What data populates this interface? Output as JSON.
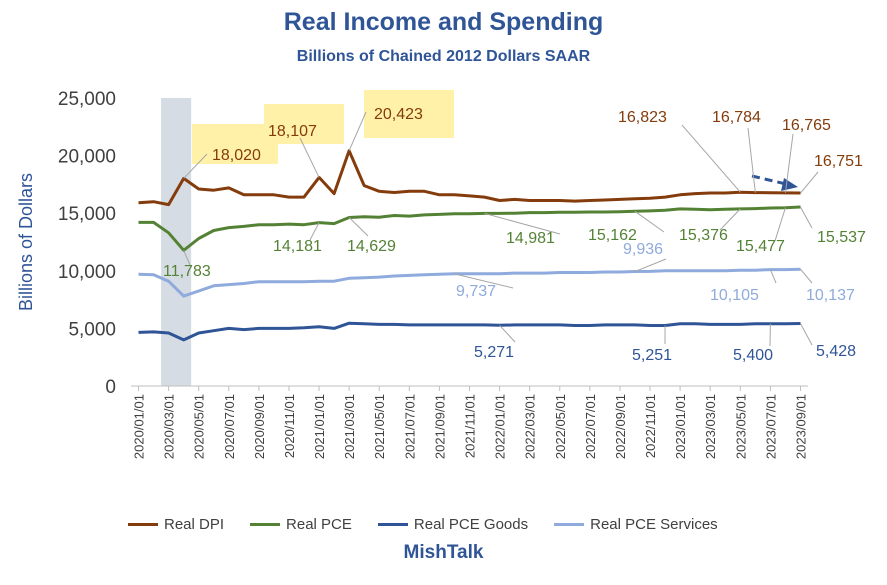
{
  "title": "Real Income and Spending",
  "subtitle": "Billions of Chained 2012 Dollars SAAR",
  "brand": "MishTalk",
  "chart_data": {
    "type": "line",
    "ylabel": "Billions of Dollars",
    "ylim": [
      0,
      25000
    ],
    "yticks": [
      "0",
      "5,000",
      "10,000",
      "15,000",
      "20,000",
      "25,000"
    ],
    "x": [
      "2020/01/01",
      "2020/02/01",
      "2020/03/01",
      "2020/04/01",
      "2020/05/01",
      "2020/06/01",
      "2020/07/01",
      "2020/08/01",
      "2020/09/01",
      "2020/10/01",
      "2020/11/01",
      "2020/12/01",
      "2021/01/01",
      "2021/02/01",
      "2021/03/01",
      "2021/04/01",
      "2021/05/01",
      "2021/06/01",
      "2021/07/01",
      "2021/08/01",
      "2021/09/01",
      "2021/10/01",
      "2021/11/01",
      "2021/12/01",
      "2022/01/01",
      "2022/02/01",
      "2022/03/01",
      "2022/04/01",
      "2022/05/01",
      "2022/06/01",
      "2022/07/01",
      "2022/08/01",
      "2022/09/01",
      "2022/10/01",
      "2022/11/01",
      "2022/12/01",
      "2023/01/01",
      "2023/02/01",
      "2023/03/01",
      "2023/04/01",
      "2023/05/01",
      "2023/06/01",
      "2023/07/01",
      "2023/08/01",
      "2023/09/01"
    ],
    "xtick_labels": [
      "2020/01/01",
      "2020/03/01",
      "2020/05/01",
      "2020/07/01",
      "2020/09/01",
      "2020/11/01",
      "2021/01/01",
      "2021/03/01",
      "2021/05/01",
      "2021/07/01",
      "2021/09/01",
      "2021/11/01",
      "2022/01/01",
      "2022/03/01",
      "2022/05/01",
      "2022/07/01",
      "2022/09/01",
      "2022/11/01",
      "2023/01/01",
      "2023/03/01",
      "2023/05/01",
      "2023/07/01",
      "2023/09/01"
    ],
    "recession_shade": [
      "2020/03/01",
      "2020/04/01"
    ],
    "series": [
      {
        "name": "Real DPI",
        "color": "#843c0c",
        "values": [
          15900,
          16000,
          15750,
          18020,
          17100,
          17000,
          17200,
          16600,
          16600,
          16600,
          16400,
          16400,
          18107,
          16700,
          20423,
          17400,
          16900,
          16800,
          16900,
          16900,
          16600,
          16600,
          16500,
          16400,
          16100,
          16200,
          16100,
          16100,
          16100,
          16050,
          16100,
          16150,
          16200,
          16250,
          16300,
          16400,
          16600,
          16700,
          16750,
          16750,
          16823,
          16784,
          16780,
          16765,
          16751
        ]
      },
      {
        "name": "Real PCE",
        "color": "#548235",
        "values": [
          14200,
          14200,
          13300,
          11783,
          12800,
          13500,
          13750,
          13850,
          14000,
          14000,
          14050,
          14000,
          14181,
          14100,
          14629,
          14700,
          14650,
          14800,
          14750,
          14850,
          14900,
          14950,
          14950,
          14981,
          14981,
          15000,
          15050,
          15050,
          15080,
          15080,
          15100,
          15100,
          15120,
          15162,
          15200,
          15250,
          15376,
          15350,
          15300,
          15350,
          15376,
          15400,
          15450,
          15477,
          15537
        ]
      },
      {
        "name": "Real PCE Goods",
        "color": "#2f5597",
        "values": [
          4650,
          4700,
          4600,
          4000,
          4600,
          4800,
          5000,
          4900,
          5000,
          5000,
          5000,
          5050,
          5150,
          5000,
          5450,
          5400,
          5350,
          5350,
          5300,
          5300,
          5300,
          5300,
          5300,
          5300,
          5271,
          5300,
          5300,
          5300,
          5300,
          5250,
          5250,
          5300,
          5300,
          5300,
          5250,
          5251,
          5400,
          5400,
          5350,
          5350,
          5350,
          5400,
          5400,
          5400,
          5428
        ]
      },
      {
        "name": "Real PCE Services",
        "color": "#8faadc",
        "values": [
          9700,
          9650,
          9100,
          7800,
          8250,
          8700,
          8800,
          8900,
          9050,
          9050,
          9050,
          9050,
          9100,
          9100,
          9350,
          9400,
          9450,
          9550,
          9600,
          9650,
          9700,
          9737,
          9737,
          9750,
          9750,
          9800,
          9800,
          9800,
          9850,
          9850,
          9850,
          9900,
          9900,
          9936,
          9950,
          10000,
          10000,
          10000,
          10000,
          10000,
          10050,
          10050,
          10105,
          10100,
          10137
        ]
      }
    ],
    "annotations": {
      "dpi": [
        "18,020",
        "18,107",
        "20,423",
        "16,823",
        "16,784",
        "16,765",
        "16,751"
      ],
      "pce": [
        "11,783",
        "14,181",
        "14,629",
        "14,981",
        "15,162",
        "15,376",
        "15,477",
        "15,537"
      ],
      "services": [
        "9,737",
        "9,936",
        "10,105",
        "10,137"
      ],
      "goods": [
        "5,271",
        "5,251",
        "5,400",
        "5,428"
      ]
    }
  }
}
